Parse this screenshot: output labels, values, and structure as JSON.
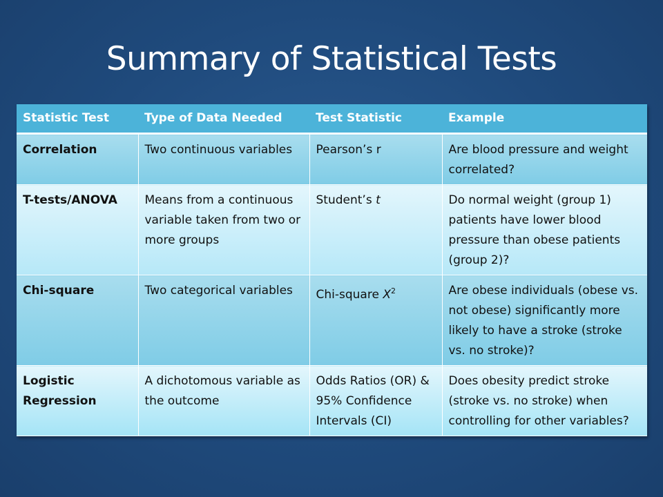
{
  "slide": {
    "title": "Summary of Statistical Tests"
  },
  "table": {
    "headers": [
      "Statistic Test",
      "Type of Data Needed",
      "Test Statistic",
      "Example"
    ],
    "rows": [
      {
        "test": "Correlation",
        "data_needed": "Two continuous variables",
        "statistic": "Pearson’s r",
        "example": "Are blood pressure and weight correlated?"
      },
      {
        "test": "T-tests/ANOVA",
        "data_needed": "Means from a continuous variable taken from two or more groups",
        "statistic_prefix": "Student’s ",
        "statistic_italic": "t",
        "example": "Do normal weight (group 1) patients have lower blood pressure than obese patients (group 2)?"
      },
      {
        "test": "Chi-square",
        "data_needed": "Two categorical variables",
        "statistic_prefix": "Chi-square ",
        "statistic_italic": "X",
        "statistic_sup": "2",
        "example": "Are obese individuals (obese vs. not obese) significantly more likely to have a stroke (stroke vs. no stroke)?"
      },
      {
        "test": "Logistic Regression",
        "data_needed": "A dichotomous variable as the outcome",
        "statistic": "Odds Ratios (OR) & 95% Confidence Intervals (CI)",
        "example": "Does obesity predict stroke (stroke vs. no stroke) when controlling for other variables?"
      }
    ]
  }
}
